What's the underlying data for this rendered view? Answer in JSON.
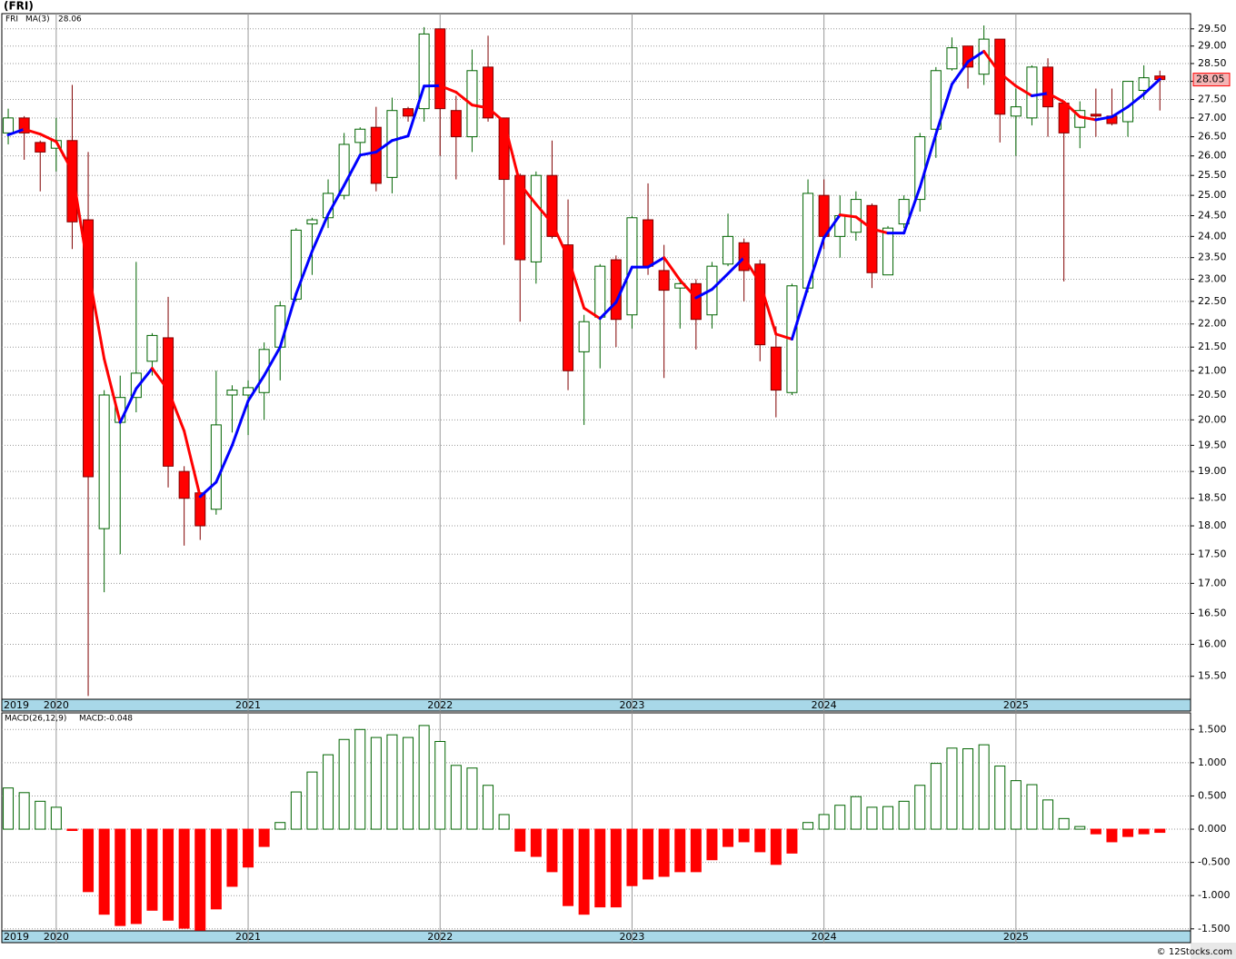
{
  "chart_data": [
    {
      "type": "candlestick",
      "title": "(FRI)",
      "log_scale": true,
      "grid": true,
      "categories": [
        "2019",
        null,
        null,
        "2020",
        null,
        null,
        null,
        null,
        null,
        null,
        null,
        null,
        null,
        null,
        null,
        "2021",
        null,
        null,
        null,
        null,
        null,
        null,
        null,
        null,
        null,
        null,
        null,
        "2022",
        null,
        null,
        null,
        null,
        null,
        null,
        null,
        null,
        null,
        null,
        null,
        "2023",
        null,
        null,
        null,
        null,
        null,
        null,
        null,
        null,
        null,
        null,
        null,
        "2024",
        null,
        null,
        null,
        null,
        null,
        null,
        null,
        null,
        null,
        null,
        null,
        "2025",
        null,
        null,
        null,
        null,
        null,
        null,
        null,
        null,
        null
      ],
      "series": [
        {
          "name": "FRI",
          "up_color": "#006400",
          "down_color": "#ff0000",
          "open": [
            26.6,
            27.0,
            26.35,
            26.2,
            26.4,
            24.4,
            17.95,
            19.95,
            20.45,
            21.2,
            21.7,
            19.0,
            18.6,
            18.3,
            20.5,
            20.5,
            20.55,
            21.5,
            22.55,
            24.3,
            24.45,
            25.0,
            26.35,
            26.75,
            25.45,
            27.25,
            27.25,
            29.5,
            27.2,
            26.5,
            28.4,
            27.0,
            25.5,
            23.4,
            25.5,
            23.8,
            21.4,
            22.15,
            23.45,
            22.2,
            24.4,
            23.2,
            22.8,
            22.9,
            22.2,
            23.35,
            23.85,
            23.35,
            21.5,
            20.55,
            22.8,
            25.0,
            24.0,
            24.1,
            24.75,
            23.1,
            24.3,
            24.9,
            26.7,
            28.35,
            29.0,
            28.2,
            29.2,
            27.05,
            27.0,
            28.4,
            27.4,
            26.75,
            27.1,
            27.05,
            26.9,
            27.75,
            28.15
          ],
          "high": [
            27.25,
            27.05,
            26.4,
            27.0,
            27.9,
            26.1,
            20.6,
            20.9,
            23.4,
            21.8,
            22.6,
            19.1,
            18.6,
            21.0,
            20.7,
            20.8,
            21.6,
            22.5,
            24.2,
            24.45,
            25.4,
            26.6,
            26.75,
            27.3,
            27.55,
            27.3,
            29.55,
            29.5,
            27.6,
            28.9,
            29.3,
            27.0,
            25.55,
            25.6,
            26.4,
            24.9,
            22.2,
            23.35,
            23.55,
            24.5,
            25.3,
            23.8,
            22.95,
            23.0,
            23.4,
            24.55,
            23.95,
            23.45,
            21.95,
            22.9,
            25.4,
            25.4,
            25.0,
            25.1,
            24.8,
            24.25,
            25.0,
            26.6,
            28.4,
            29.25,
            29.0,
            29.6,
            29.2,
            27.8,
            28.45,
            28.65,
            27.45,
            27.45,
            27.8,
            27.8,
            28.0,
            28.45,
            28.3
          ],
          "low": [
            26.3,
            25.9,
            25.1,
            25.6,
            23.7,
            15.2,
            16.85,
            17.5,
            20.15,
            20.9,
            18.7,
            17.65,
            17.75,
            18.2,
            19.75,
            19.7,
            20.0,
            20.8,
            22.5,
            23.1,
            24.2,
            24.9,
            26.05,
            25.1,
            25.05,
            26.9,
            26.9,
            26.0,
            25.4,
            26.1,
            26.9,
            23.8,
            22.05,
            22.9,
            23.95,
            20.6,
            19.9,
            21.05,
            21.5,
            21.9,
            23.1,
            20.85,
            21.9,
            21.45,
            21.9,
            23.3,
            22.5,
            21.2,
            20.05,
            20.5,
            22.7,
            23.7,
            23.5,
            23.9,
            22.8,
            23.1,
            24.2,
            24.6,
            25.95,
            28.3,
            27.8,
            27.9,
            26.35,
            26.0,
            26.8,
            26.5,
            22.95,
            26.2,
            26.5,
            26.8,
            26.5,
            27.5,
            27.2
          ],
          "close": [
            27.0,
            26.6,
            26.1,
            26.4,
            24.35,
            18.9,
            20.5,
            20.45,
            20.95,
            21.75,
            19.1,
            18.5,
            18.0,
            19.9,
            20.6,
            20.65,
            21.45,
            22.4,
            24.15,
            24.4,
            25.05,
            26.3,
            26.7,
            25.3,
            27.2,
            27.05,
            29.35,
            27.25,
            26.5,
            28.3,
            27.0,
            25.4,
            23.45,
            25.5,
            24.0,
            21.0,
            22.05,
            23.3,
            22.1,
            24.45,
            23.3,
            22.75,
            22.9,
            22.1,
            23.3,
            24.0,
            23.2,
            21.55,
            20.6,
            22.85,
            25.05,
            24.0,
            24.5,
            24.9,
            23.15,
            24.2,
            24.9,
            26.5,
            28.3,
            28.95,
            28.4,
            29.2,
            27.1,
            27.3,
            28.4,
            27.3,
            26.6,
            27.2,
            27.05,
            26.85,
            28.0,
            28.1,
            28.05
          ]
        },
        {
          "name": "MA(3)",
          "up_color": "#0000ff",
          "down_color": "#ff0000",
          "values": [
            26.55,
            26.7,
            26.57,
            26.37,
            25.62,
            23.22,
            21.25,
            19.95,
            20.63,
            21.05,
            20.6,
            19.78,
            18.53,
            18.8,
            19.5,
            20.38,
            20.9,
            21.5,
            22.67,
            23.65,
            24.53,
            25.25,
            26.02,
            26.1,
            26.4,
            26.52,
            27.87,
            27.88,
            27.7,
            27.35,
            27.27,
            26.9,
            25.28,
            24.78,
            24.32,
            23.5,
            22.35,
            22.12,
            22.48,
            23.28,
            23.28,
            23.5,
            22.98,
            22.58,
            22.77,
            23.13,
            23.5,
            22.92,
            21.78,
            21.67,
            22.83,
            23.97,
            24.52,
            24.47,
            24.18,
            24.08,
            24.08,
            25.2,
            26.57,
            27.92,
            28.55,
            28.85,
            28.23,
            27.87,
            27.6,
            27.67,
            27.43,
            27.03,
            26.95,
            27.03,
            27.3,
            27.65,
            28.06
          ]
        }
      ],
      "ylim": [
        15.15,
        29.95
      ],
      "yticks": [
        {
          "value": 15.5,
          "label": "15.50"
        },
        {
          "value": 16,
          "label": "16.00"
        },
        {
          "value": 16.5,
          "label": "16.50"
        },
        {
          "value": 17,
          "label": "17.00"
        },
        {
          "value": 17.5,
          "label": "17.50"
        },
        {
          "value": 18,
          "label": "18.00"
        },
        {
          "value": 18.5,
          "label": "18.50"
        },
        {
          "value": 19,
          "label": "19.00"
        },
        {
          "value": 19.5,
          "label": "19.50"
        },
        {
          "value": 20,
          "label": "20.00"
        },
        {
          "value": 20.5,
          "label": "20.50"
        },
        {
          "value": 21,
          "label": "21.00"
        },
        {
          "value": 21.5,
          "label": "21.50"
        },
        {
          "value": 22,
          "label": "22.00"
        },
        {
          "value": 22.5,
          "label": "22.50"
        },
        {
          "value": 23,
          "label": "23.00"
        },
        {
          "value": 23.5,
          "label": "23.50"
        },
        {
          "value": 24,
          "label": "24.00"
        },
        {
          "value": 24.5,
          "label": "24.50"
        },
        {
          "value": 25,
          "label": "25.00"
        },
        {
          "value": 25.5,
          "label": "25.50"
        },
        {
          "value": 26,
          "label": "26.00"
        },
        {
          "value": 26.5,
          "label": "26.50"
        },
        {
          "value": 27,
          "label": "27.00"
        },
        {
          "value": 27.5,
          "label": "27.50"
        },
        {
          "value": 28,
          "label": "28.00"
        },
        {
          "value": 28.5,
          "label": "28.50"
        },
        {
          "value": 29,
          "label": "29.00"
        },
        {
          "value": 29.5,
          "label": "29.50"
        }
      ]
    },
    {
      "type": "bar",
      "title": "MACD(26,12,9)",
      "current_label": "MACD:-0.048",
      "grid": true,
      "pos_color": "#006400",
      "neg_color": "#ff0000",
      "values": [
        0.62,
        0.55,
        0.42,
        0.33,
        -0.02,
        -0.94,
        -1.28,
        -1.45,
        -1.42,
        -1.22,
        -1.37,
        -1.49,
        -1.52,
        -1.2,
        -0.86,
        -0.57,
        -0.26,
        0.1,
        0.56,
        0.86,
        1.12,
        1.35,
        1.5,
        1.38,
        1.42,
        1.38,
        1.56,
        1.32,
        0.96,
        0.92,
        0.66,
        0.22,
        -0.33,
        -0.41,
        -0.64,
        -1.15,
        -1.28,
        -1.17,
        -1.17,
        -0.85,
        -0.75,
        -0.71,
        -0.64,
        -0.64,
        -0.46,
        -0.26,
        -0.19,
        -0.34,
        -0.53,
        -0.36,
        0.1,
        0.22,
        0.36,
        0.49,
        0.33,
        0.34,
        0.42,
        0.66,
        0.99,
        1.22,
        1.21,
        1.27,
        0.95,
        0.73,
        0.67,
        0.44,
        0.16,
        0.04,
        -0.07,
        -0.19,
        -0.11,
        -0.07,
        -0.048
      ],
      "ylim": [
        -1.53,
        1.75
      ],
      "yticks": [
        {
          "value": 1.5,
          "label": "1.500"
        },
        {
          "value": 1,
          "label": "1.000"
        },
        {
          "value": 0.5,
          "label": "0.500"
        },
        {
          "value": 0,
          "label": "0.000"
        },
        {
          "value": -0.5,
          "label": "-0.500"
        },
        {
          "value": -1,
          "label": "-1.000"
        },
        {
          "value": -1.5,
          "label": "-1.500"
        }
      ]
    }
  ],
  "footer": "© 12Stocks.com"
}
